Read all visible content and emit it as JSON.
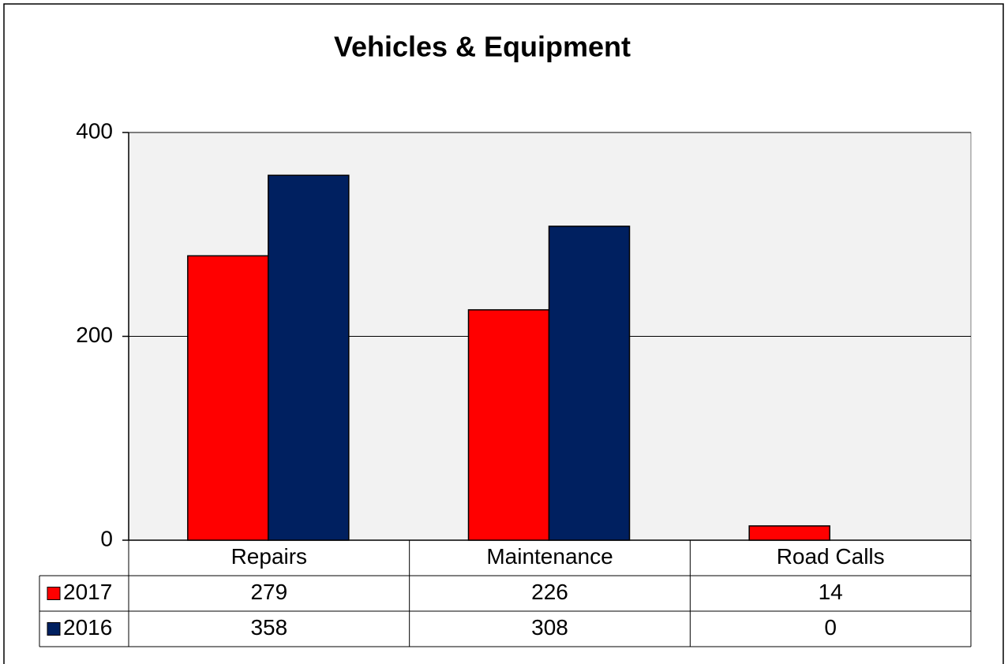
{
  "chart_data": {
    "type": "bar",
    "title": "Vehicles & Equipment",
    "categories": [
      "Repairs",
      "Maintenance",
      "Road Calls"
    ],
    "series": [
      {
        "name": "2017",
        "color": "#ff0000",
        "values": [
          279,
          226,
          14
        ]
      },
      {
        "name": "2016",
        "color": "#002060",
        "values": [
          358,
          308,
          0
        ]
      }
    ],
    "ylim": [
      0,
      400
    ],
    "yticks": [
      0,
      200,
      400
    ],
    "grid": true
  }
}
